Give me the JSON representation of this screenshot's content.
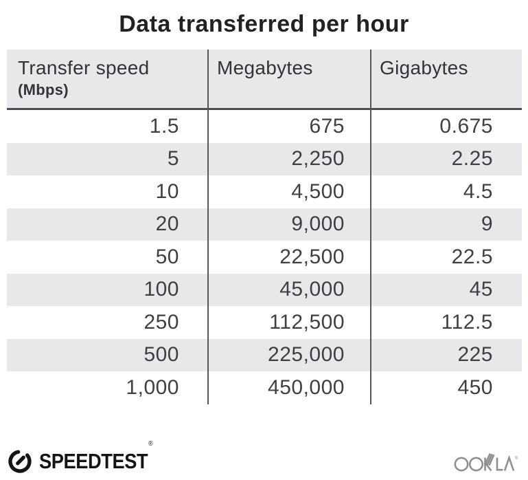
{
  "title": "Data transferred per hour",
  "table": {
    "columns": [
      {
        "label": "Transfer speed",
        "sublabel": "(Mbps)"
      },
      {
        "label": "Megabytes",
        "sublabel": ""
      },
      {
        "label": "Gigabytes",
        "sublabel": ""
      }
    ],
    "rows": [
      [
        "1.5",
        "675",
        "0.675"
      ],
      [
        "5",
        "2,250",
        "2.25"
      ],
      [
        "10",
        "4,500",
        "4.5"
      ],
      [
        "20",
        "9,000",
        "9"
      ],
      [
        "50",
        "22,500",
        "22.5"
      ],
      [
        "100",
        "45,000",
        "45"
      ],
      [
        "250",
        "112,500",
        "112.5"
      ],
      [
        "500",
        "225,000",
        "225"
      ],
      [
        "1,000",
        "450,000",
        "450"
      ]
    ]
  },
  "footer": {
    "speedtest_label": "SPEEDTEST",
    "reg_mark": "®",
    "ookla_label": "OOKLA"
  },
  "colors": {
    "stripe_gray": "#e8e8eb",
    "rule_dark": "#4e4e52",
    "divider_dark": "#55555a",
    "body_text": "#3f3f44",
    "title_text": "#222226",
    "speedtest_black": "#141418",
    "ookla_gray": "#8e8e92"
  },
  "chart_data": {
    "type": "table",
    "title": "Data transferred per hour",
    "columns": [
      "Transfer speed (Mbps)",
      "Megabytes",
      "Gigabytes"
    ],
    "rows": [
      [
        1.5,
        675,
        0.675
      ],
      [
        5,
        2250,
        2.25
      ],
      [
        10,
        4500,
        4.5
      ],
      [
        20,
        9000,
        9
      ],
      [
        50,
        22500,
        22.5
      ],
      [
        100,
        45000,
        45
      ],
      [
        250,
        112500,
        112.5
      ],
      [
        500,
        225000,
        225
      ],
      [
        1000,
        450000,
        450
      ]
    ]
  }
}
